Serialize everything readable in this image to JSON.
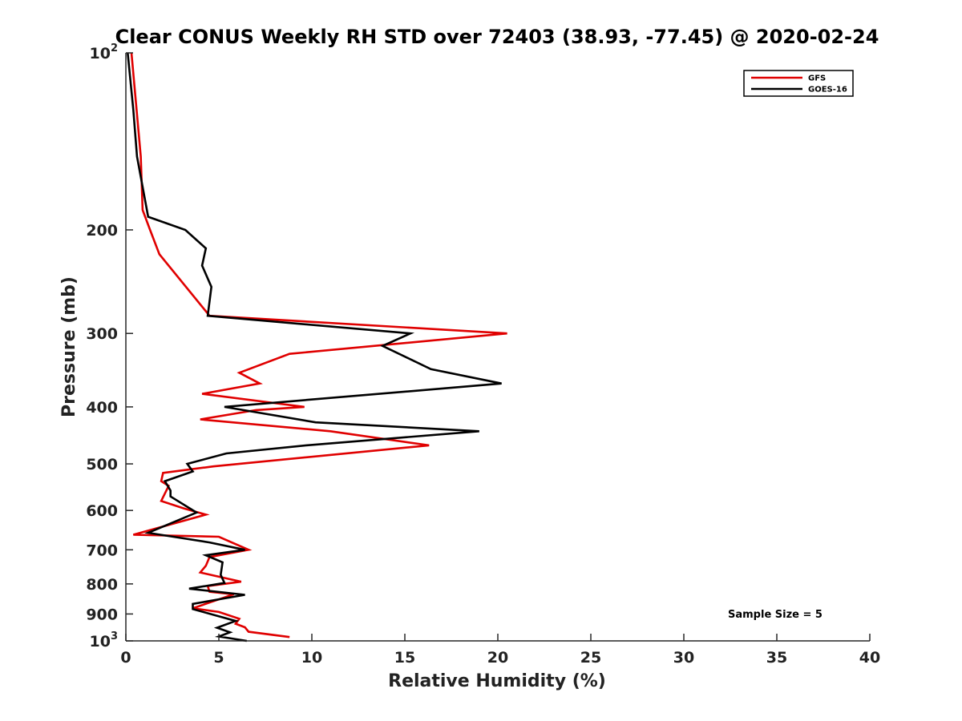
{
  "chart_data": {
    "type": "line",
    "title": "Clear CONUS Weekly RH STD over 72403 (38.93, -77.45) @ 2020-02-24",
    "xlabel": "Relative Humidity (%)",
    "ylabel": "Pressure (mb)",
    "xlim": [
      0,
      40
    ],
    "ylim": [
      100,
      1000
    ],
    "y_scale": "log",
    "y_reversed": true,
    "grid": false,
    "legend_position": "top-right",
    "x_ticks": [
      "0",
      "5",
      "10",
      "15",
      "20",
      "25",
      "30",
      "35",
      "40"
    ],
    "y_ticks": [
      {
        "value": 100,
        "base": "10",
        "sup": "2"
      },
      {
        "value": 200,
        "base": "200",
        "sup": ""
      },
      {
        "value": 300,
        "base": "300",
        "sup": ""
      },
      {
        "value": 400,
        "base": "400",
        "sup": ""
      },
      {
        "value": 500,
        "base": "500",
        "sup": ""
      },
      {
        "value": 600,
        "base": "600",
        "sup": ""
      },
      {
        "value": 700,
        "base": "700",
        "sup": ""
      },
      {
        "value": 800,
        "base": "800",
        "sup": ""
      },
      {
        "value": 900,
        "base": "900",
        "sup": ""
      },
      {
        "value": 1000,
        "base": "10",
        "sup": "3"
      }
    ],
    "annotation": "Sample Size = 5",
    "series": [
      {
        "name": "GFS",
        "color": "#e00000",
        "points": [
          [
            0.3,
            100
          ],
          [
            0.8,
            150
          ],
          [
            0.9,
            185
          ],
          [
            1.3,
            200
          ],
          [
            1.8,
            220
          ],
          [
            4.5,
            280
          ],
          [
            20.5,
            300
          ],
          [
            8.8,
            325
          ],
          [
            6.1,
            350
          ],
          [
            7.2,
            365
          ],
          [
            4.1,
            380
          ],
          [
            9.6,
            400
          ],
          [
            7.0,
            405
          ],
          [
            4.0,
            420
          ],
          [
            11.0,
            440
          ],
          [
            16.3,
            465
          ],
          [
            4.7,
            505
          ],
          [
            2.0,
            518
          ],
          [
            1.9,
            535
          ],
          [
            2.3,
            545
          ],
          [
            1.9,
            578
          ],
          [
            3.1,
            595
          ],
          [
            4.3,
            610
          ],
          [
            0.4,
            660
          ],
          [
            5.0,
            665
          ],
          [
            6.6,
            700
          ],
          [
            4.5,
            720
          ],
          [
            4.3,
            745
          ],
          [
            4.0,
            765
          ],
          [
            6.2,
            793
          ],
          [
            4.4,
            807
          ],
          [
            4.5,
            825
          ],
          [
            5.8,
            833
          ],
          [
            3.6,
            880
          ],
          [
            5.0,
            893
          ],
          [
            6.1,
            917
          ],
          [
            5.9,
            935
          ],
          [
            6.4,
            948
          ],
          [
            6.6,
            965
          ],
          [
            8.8,
            985
          ]
        ]
      },
      {
        "name": "GOES-16",
        "color": "#000000",
        "points": [
          [
            0.1,
            100
          ],
          [
            0.4,
            125
          ],
          [
            0.6,
            150
          ],
          [
            1.2,
            190
          ],
          [
            3.2,
            200
          ],
          [
            4.3,
            215
          ],
          [
            4.1,
            230
          ],
          [
            4.6,
            250
          ],
          [
            4.4,
            280
          ],
          [
            15.3,
            300
          ],
          [
            13.8,
            315
          ],
          [
            16.4,
            345
          ],
          [
            20.2,
            365
          ],
          [
            5.3,
            400
          ],
          [
            10.2,
            425
          ],
          [
            19.0,
            440
          ],
          [
            9.7,
            465
          ],
          [
            5.4,
            480
          ],
          [
            3.3,
            500
          ],
          [
            3.6,
            515
          ],
          [
            2.1,
            535
          ],
          [
            2.4,
            555
          ],
          [
            2.4,
            568
          ],
          [
            3.8,
            605
          ],
          [
            1.2,
            655
          ],
          [
            4.5,
            680
          ],
          [
            6.4,
            700
          ],
          [
            4.3,
            715
          ],
          [
            5.2,
            735
          ],
          [
            5.1,
            772
          ],
          [
            5.3,
            797
          ],
          [
            3.4,
            815
          ],
          [
            6.4,
            835
          ],
          [
            3.6,
            865
          ],
          [
            3.6,
            883
          ],
          [
            5.9,
            925
          ],
          [
            4.9,
            950
          ],
          [
            5.6,
            967
          ],
          [
            5.0,
            983
          ],
          [
            6.5,
            1000
          ]
        ]
      }
    ]
  }
}
